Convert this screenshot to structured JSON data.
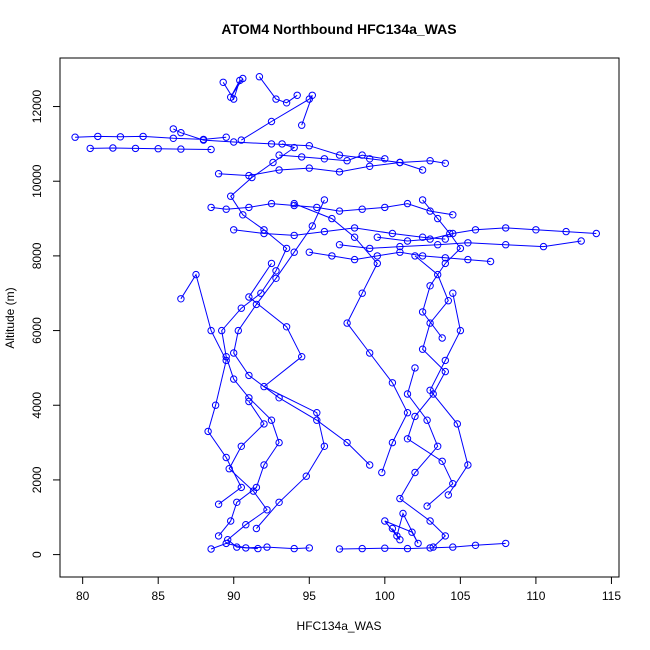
{
  "chart_data": {
    "type": "scatter",
    "title": "ATOM4 Northbound HFC134a_WAS",
    "xlabel": "HFC134a_WAS",
    "ylabel": "Altitude (m)",
    "xlim": [
      78.5,
      115.5
    ],
    "ylim": [
      -600,
      13300
    ],
    "x_ticks": [
      80,
      85,
      90,
      95,
      100,
      105,
      110,
      115
    ],
    "y_ticks": [
      0,
      2000,
      4000,
      6000,
      8000,
      10000,
      12000
    ],
    "grid": false,
    "legend": "none",
    "point_style": "open-circle",
    "connect_points": true,
    "color": "#0000ff",
    "series": [
      {
        "x": [
          88.5,
          89.5,
          90.8,
          92.2,
          94.0,
          95.0
        ],
        "y": [
          150,
          300,
          180,
          200,
          160,
          180
        ]
      },
      {
        "x": [
          89.0,
          89.8,
          90.2,
          91.5,
          92.0,
          93.0,
          92.5,
          91.0,
          90.0,
          89.5,
          89.2,
          90.5,
          91.8,
          92.8,
          93.5,
          92.0,
          90.6,
          89.8,
          91.2,
          92.6,
          94.0,
          93.2
        ],
        "y": [
          500,
          900,
          1400,
          1800,
          2400,
          3000,
          3600,
          4200,
          4700,
          5300,
          6000,
          6600,
          7000,
          7600,
          8200,
          8700,
          9100,
          9600,
          10100,
          10500,
          10900,
          11000
        ]
      },
      {
        "x": [
          90.5,
          92.5,
          95.0,
          95.2,
          94.5
        ],
        "y": [
          11100,
          11600,
          12200,
          12300,
          11500
        ]
      },
      {
        "x": [
          79.5,
          81.0,
          82.5,
          84.0,
          86.0,
          88.0,
          89.5
        ],
        "y": [
          11180,
          11200,
          11190,
          11200,
          11150,
          11120,
          11180
        ]
      },
      {
        "x": [
          80.5,
          82.0,
          83.5,
          85.0,
          86.5,
          88.5
        ],
        "y": [
          10880,
          10890,
          10880,
          10870,
          10860,
          10850
        ]
      },
      {
        "x": [
          86.0,
          86.5,
          88.0,
          90.0,
          92.5,
          95.0,
          97.0,
          99.0,
          101.0,
          103.0,
          104.0
        ],
        "y": [
          11400,
          11300,
          11100,
          11050,
          11000,
          10950,
          10700,
          10600,
          10500,
          10550,
          10480
        ]
      },
      {
        "x": [
          99.5,
          101.5,
          103.0,
          104.5,
          106.0,
          108.0,
          110.0,
          112.0,
          114.0
        ],
        "y": [
          8500,
          8400,
          8450,
          8600,
          8700,
          8750,
          8700,
          8650,
          8600
        ]
      },
      {
        "x": [
          97.0,
          99.0,
          101.0,
          103.5,
          105.5,
          108.0,
          110.5,
          113.0
        ],
        "y": [
          8300,
          8200,
          8250,
          8300,
          8350,
          8300,
          8250,
          8400
        ]
      },
      {
        "x": [
          94.0,
          96.5,
          98.0,
          99.5,
          98.5,
          97.5,
          99.0,
          100.5,
          101.5,
          100.5,
          99.8
        ],
        "y": [
          9400,
          9000,
          8500,
          7800,
          7000,
          6200,
          5400,
          4600,
          3800,
          3000,
          2200
        ]
      },
      {
        "x": [
          102.0,
          103.5,
          104.2,
          103.0,
          102.5,
          104.0,
          103.2,
          102.0,
          101.5,
          103.8,
          104.5,
          102.8
        ],
        "y": [
          8000,
          7500,
          6800,
          6200,
          5500,
          4900,
          4300,
          3700,
          3100,
          2500,
          1900,
          1300
        ]
      },
      {
        "x": [
          97.0,
          98.5,
          100.0,
          101.5,
          103.0,
          104.5,
          106.0,
          108.0
        ],
        "y": [
          150,
          160,
          170,
          160,
          180,
          200,
          250,
          300
        ]
      },
      {
        "x": [
          92.5,
          91.0,
          93.5,
          94.5,
          92.0,
          95.5,
          96.0,
          94.8,
          93.0,
          91.5
        ],
        "y": [
          7800,
          6900,
          6100,
          5300,
          4500,
          3800,
          2900,
          2100,
          1400,
          700
        ]
      },
      {
        "x": [
          88.5,
          89.5,
          91.0,
          92.5,
          94.0,
          95.5,
          97.0,
          98.5,
          100.0,
          101.5,
          103.0,
          104.5
        ],
        "y": [
          9300,
          9250,
          9300,
          9400,
          9350,
          9300,
          9200,
          9250,
          9300,
          9400,
          9200,
          9100
        ]
      },
      {
        "x": [
          89.0,
          91.0,
          93.0,
          95.0,
          97.0,
          99.0,
          101.0,
          102.5
        ],
        "y": [
          10200,
          10150,
          10300,
          10350,
          10250,
          10400,
          10500,
          10300
        ]
      },
      {
        "x": [
          90.0,
          92.0,
          94.0,
          96.0,
          98.0,
          100.5,
          102.5,
          104.0
        ],
        "y": [
          8700,
          8600,
          8550,
          8650,
          8750,
          8600,
          8500,
          8450
        ]
      },
      {
        "x": [
          86.5,
          87.5,
          88.5,
          89.5,
          88.8,
          88.3,
          89.5,
          90.5,
          89.0
        ],
        "y": [
          6850,
          7500,
          6000,
          5200,
          4000,
          3300,
          2600,
          1800,
          1350
        ]
      },
      {
        "x": [
          104.5,
          105.0,
          104.0,
          103.0,
          104.8,
          105.5,
          104.2
        ],
        "y": [
          7000,
          6000,
          5200,
          4400,
          3500,
          2400,
          1600
        ]
      },
      {
        "x": [
          100.5,
          101.0,
          100.0,
          101.8,
          102.2,
          101.2,
          100.8
        ],
        "y": [
          700,
          400,
          900,
          600,
          300,
          1100,
          500
        ]
      },
      {
        "x": [
          93.0,
          94.5,
          96.0,
          97.5,
          98.5,
          100.0
        ],
        "y": [
          10700,
          10650,
          10600,
          10550,
          10700,
          10600
        ]
      },
      {
        "x": [
          89.3,
          90.0,
          90.4,
          89.8,
          90.6
        ],
        "y": [
          12650,
          12200,
          12700,
          12250,
          12750
        ]
      },
      {
        "x": [
          91.7,
          92.8,
          93.5,
          94.2
        ],
        "y": [
          12800,
          12200,
          12100,
          12300
        ]
      },
      {
        "x": [
          96.0,
          95.2,
          94.0,
          92.8,
          91.5,
          90.3,
          90.0,
          91.0,
          93.0,
          95.5,
          97.5,
          99.0
        ],
        "y": [
          9500,
          8800,
          8100,
          7400,
          6700,
          6000,
          5400,
          4800,
          4200,
          3600,
          3000,
          2400
        ]
      },
      {
        "x": [
          102.5,
          103.5,
          104.3,
          105.0,
          104.0,
          103.0,
          102.5,
          103.8
        ],
        "y": [
          9500,
          9000,
          8600,
          8200,
          7800,
          7200,
          6500,
          5800
        ]
      },
      {
        "x": [
          95.0,
          96.5,
          98.0,
          99.5,
          101.0,
          102.5,
          104.0,
          105.5,
          107.0
        ],
        "y": [
          8100,
          8000,
          7900,
          8000,
          8100,
          8000,
          7950,
          7900,
          7850
        ]
      },
      {
        "x": [
          91.0,
          92.0,
          90.5,
          89.7,
          91.3,
          92.2,
          90.8,
          89.6,
          90.2,
          91.6
        ],
        "y": [
          4100,
          3500,
          2900,
          2300,
          1700,
          1200,
          800,
          400,
          200,
          160
        ]
      },
      {
        "x": [
          102.0,
          101.5,
          102.8,
          103.5,
          102.0,
          101.0,
          103.0,
          104.0,
          103.2
        ],
        "y": [
          5000,
          4300,
          3600,
          2900,
          2200,
          1500,
          900,
          500,
          200
        ]
      }
    ]
  }
}
